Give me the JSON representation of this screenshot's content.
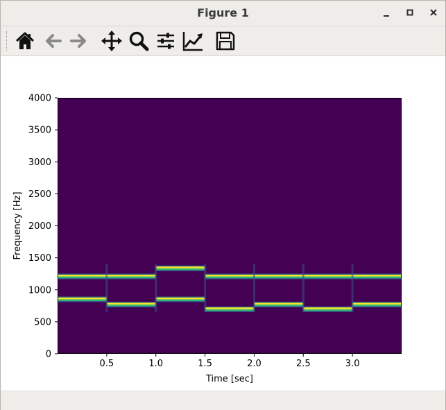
{
  "window": {
    "title": "Figure 1"
  },
  "toolbar": {
    "buttons": [
      {
        "name": "home-icon"
      },
      {
        "name": "back-arrow-icon"
      },
      {
        "name": "forward-arrow-icon"
      },
      {
        "name": "pan-move-icon"
      },
      {
        "name": "zoom-magnifier-icon"
      },
      {
        "name": "configure-subplots-icon"
      },
      {
        "name": "edit-axis-icon"
      },
      {
        "name": "save-floppy-icon"
      }
    ]
  },
  "chart_data": {
    "type": "heatmap",
    "title": "",
    "xlabel": "Time [sec]",
    "ylabel": "Frequency [Hz]",
    "xlim": [
      0,
      3.5
    ],
    "ylim": [
      0,
      4000
    ],
    "xticks": [
      "0.5",
      "1.0",
      "1.5",
      "2.0",
      "2.5",
      "3.0"
    ],
    "yticks": [
      "0",
      "500",
      "1000",
      "1500",
      "2000",
      "2500",
      "3000",
      "3500",
      "4000"
    ],
    "colormap": "viridis",
    "background_color": "#440154",
    "segments": [
      {
        "t_start": 0.0,
        "t_end": 0.5,
        "frequencies": [
          852,
          1209
        ]
      },
      {
        "t_start": 0.5,
        "t_end": 1.0,
        "frequencies": [
          770,
          1209
        ]
      },
      {
        "t_start": 1.0,
        "t_end": 1.5,
        "frequencies": [
          852,
          1336
        ]
      },
      {
        "t_start": 1.5,
        "t_end": 2.0,
        "frequencies": [
          697,
          1209
        ]
      },
      {
        "t_start": 2.0,
        "t_end": 2.5,
        "frequencies": [
          770,
          1209
        ]
      },
      {
        "t_start": 2.5,
        "t_end": 3.0,
        "frequencies": [
          697,
          1209
        ]
      },
      {
        "t_start": 3.0,
        "t_end": 3.5,
        "frequencies": [
          770,
          1209
        ]
      }
    ]
  }
}
